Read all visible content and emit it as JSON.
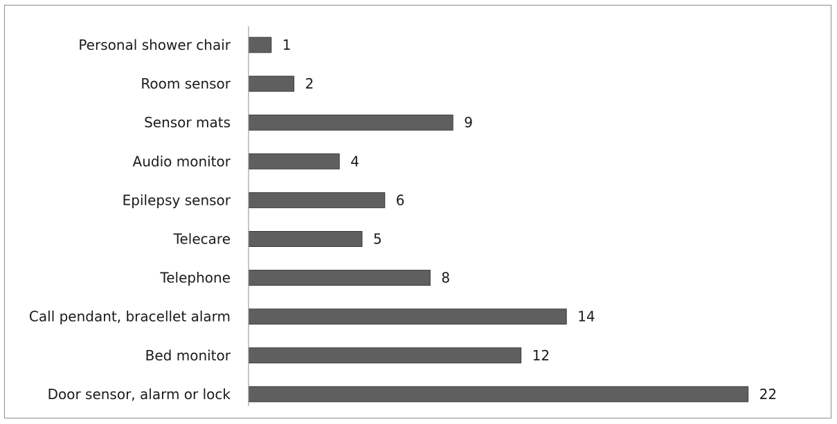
{
  "chart_data": {
    "type": "bar",
    "orientation": "horizontal",
    "categories": [
      "Personal shower chair",
      "Room sensor",
      "Sensor mats",
      "Audio monitor",
      "Epilepsy sensor",
      "Telecare",
      "Telephone",
      "Call pendant, bracellet alarm",
      "Bed monitor",
      "Door sensor, alarm or lock"
    ],
    "values": [
      1,
      2,
      9,
      4,
      6,
      5,
      8,
      14,
      12,
      22
    ],
    "data_labels": [
      "1",
      "2",
      "9",
      "4",
      "6",
      "5",
      "8",
      "14",
      "12",
      "22"
    ],
    "xlim": [
      0,
      22
    ],
    "grid": false,
    "legend": "none",
    "bar_color": "#5f5f5f",
    "axis_color": "#8c8c8c"
  }
}
